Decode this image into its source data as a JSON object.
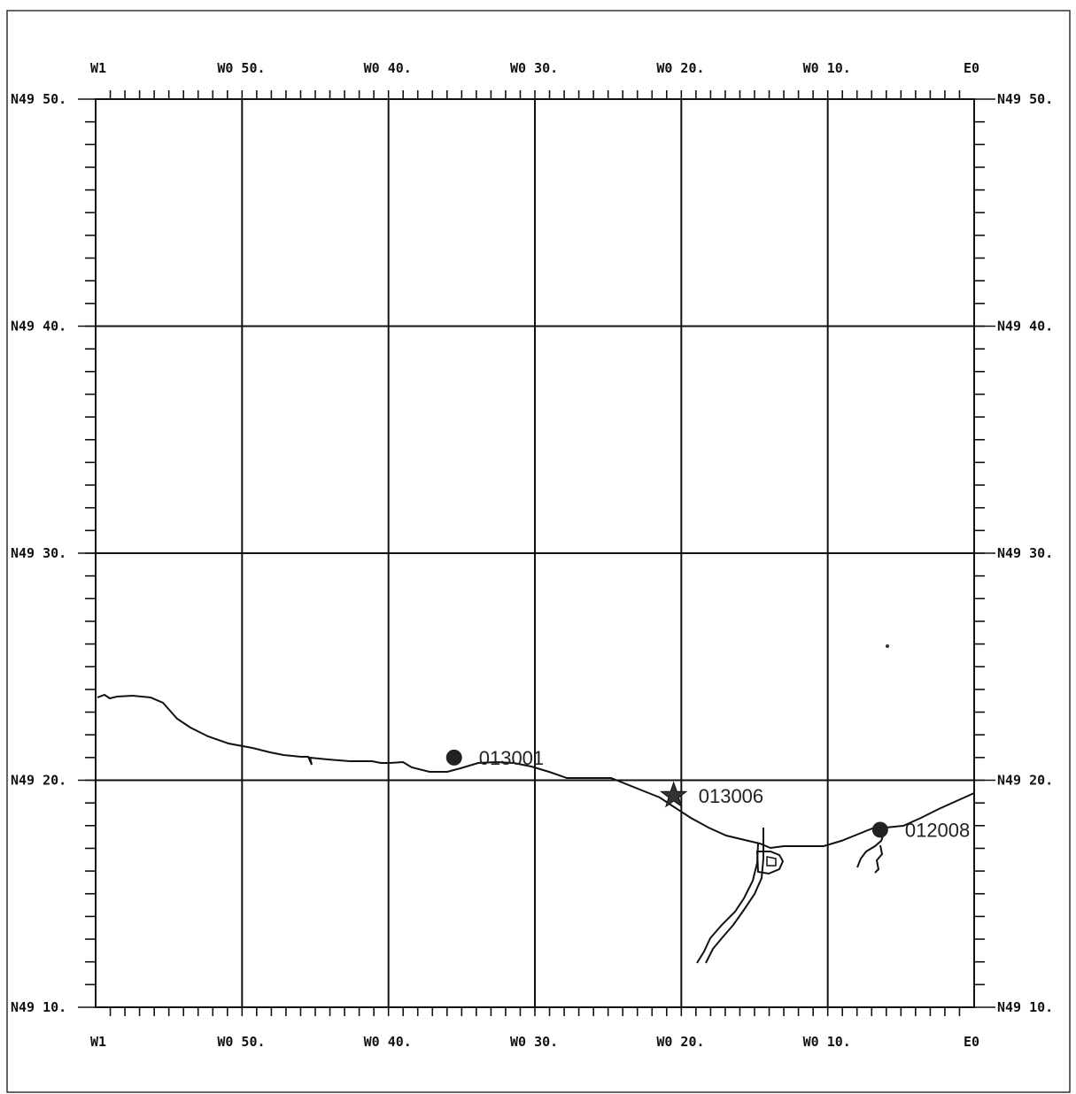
{
  "map": {
    "longitude_labels": [
      "W1",
      "W0 50.",
      "W0 40.",
      "W0 30.",
      "W0 20.",
      "W0 10.",
      "E0"
    ],
    "latitude_labels": [
      "N49 50.",
      "N49 40.",
      "N49 30.",
      "N49 20.",
      "N49 10."
    ],
    "longitude_range_deg": [
      -1.0,
      0.0
    ],
    "latitude_range_deg": [
      49.1667,
      49.8333
    ],
    "grid": true,
    "stations": [
      {
        "id": "013001",
        "symbol": "circle",
        "lon": -0.592,
        "lat": 49.35
      },
      {
        "id": "013006",
        "symbol": "star",
        "lon": -0.342,
        "lat": 49.322
      },
      {
        "id": "012008",
        "symbol": "circle",
        "lon": -0.107,
        "lat": 49.297
      }
    ]
  }
}
